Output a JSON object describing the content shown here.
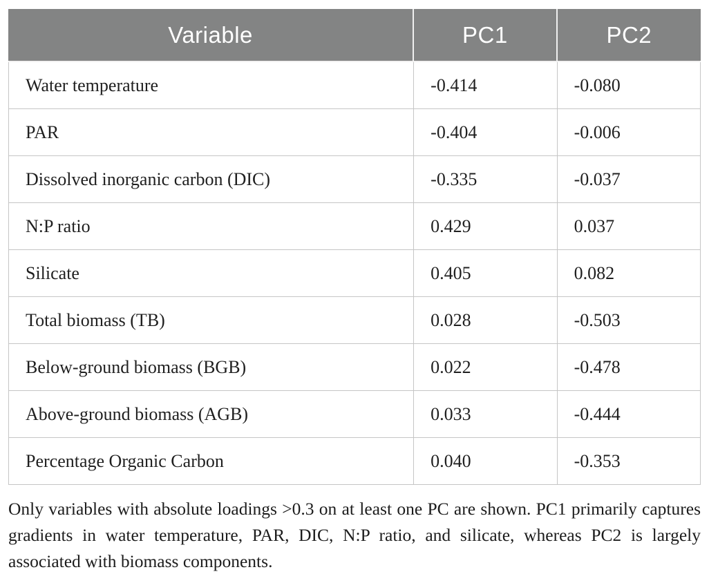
{
  "table": {
    "columns": [
      "Variable",
      "PC1",
      "PC2"
    ],
    "rows": [
      {
        "variable": "Water temperature",
        "pc1": "-0.414",
        "pc2": "-0.080"
      },
      {
        "variable": "PAR",
        "pc1": "-0.404",
        "pc2": "-0.006"
      },
      {
        "variable": "Dissolved inorganic carbon (DIC)",
        "pc1": "-0.335",
        "pc2": "-0.037"
      },
      {
        "variable": "N:P ratio",
        "pc1": "0.429",
        "pc2": "0.037"
      },
      {
        "variable": "Silicate",
        "pc1": "0.405",
        "pc2": "0.082"
      },
      {
        "variable": "Total biomass (TB)",
        "pc1": "0.028",
        "pc2": "-0.503"
      },
      {
        "variable": "Below-ground biomass (BGB)",
        "pc1": "0.022",
        "pc2": "-0.478"
      },
      {
        "variable": "Above-ground biomass (AGB)",
        "pc1": "0.033",
        "pc2": "-0.444"
      },
      {
        "variable": "Percentage Organic Carbon",
        "pc1": "0.040",
        "pc2": "-0.353"
      }
    ]
  },
  "footnote": "Only variables with absolute loadings >0.3 on at least one PC are shown. PC1 primarily captures gradients in water temperature, PAR, DIC, N:P ratio, and silicate, whereas PC2 is largely associated with biomass components.",
  "colors": {
    "header_bg": "#838484",
    "header_text": "#ffffff",
    "border": "#c5c5c5",
    "body_text": "#1f1f1f"
  }
}
